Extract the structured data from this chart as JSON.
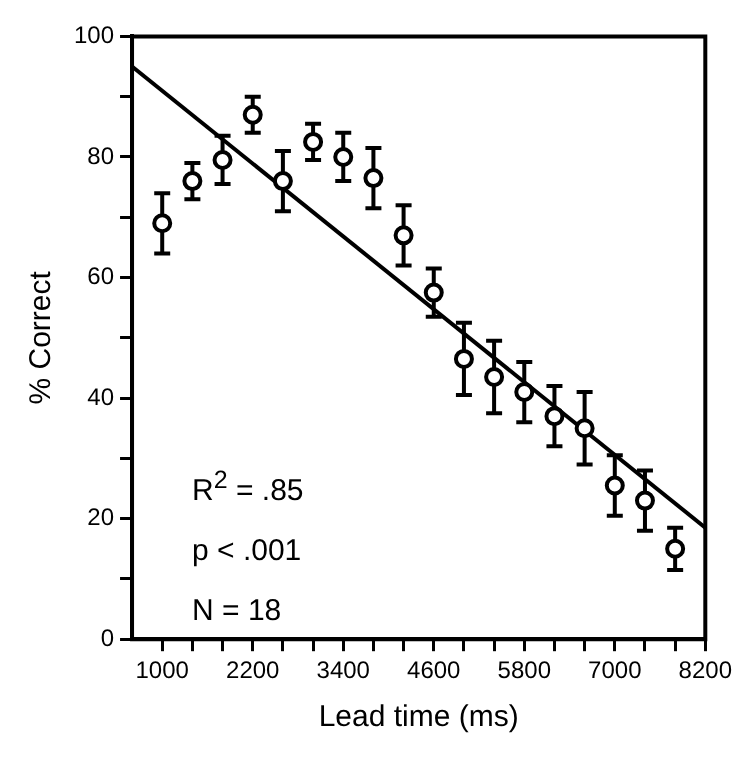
{
  "chart_data": {
    "type": "scatter",
    "xlabel": "Lead time (ms)",
    "ylabel": "% Correct",
    "annotations": [
      "R$^{2}$ = .85",
      "p < .001",
      "N = 18"
    ],
    "xlim": [
      600,
      8200
    ],
    "xticks": [
      {
        "value": 1000,
        "label": "1000"
      },
      {
        "value": 1400,
        "label": null
      },
      {
        "value": 1800,
        "label": null
      },
      {
        "value": 2200,
        "label": "2200"
      },
      {
        "value": 2600,
        "label": null
      },
      {
        "value": 3000,
        "label": null
      },
      {
        "value": 3400,
        "label": "3400"
      },
      {
        "value": 3800,
        "label": null
      },
      {
        "value": 4200,
        "label": null
      },
      {
        "value": 4600,
        "label": "4600"
      },
      {
        "value": 5000,
        "label": null
      },
      {
        "value": 5400,
        "label": null
      },
      {
        "value": 5800,
        "label": "5800"
      },
      {
        "value": 6200,
        "label": null
      },
      {
        "value": 6600,
        "label": null
      },
      {
        "value": 7000,
        "label": "7000"
      },
      {
        "value": 7400,
        "label": null
      },
      {
        "value": 7800,
        "label": null
      },
      {
        "value": 8200,
        "label": "8200"
      }
    ],
    "ylim": [
      0,
      100
    ],
    "yticks": [
      0,
      {
        "value": 10,
        "label": null
      },
      20,
      {
        "value": 30,
        "label": null
      },
      40,
      {
        "value": 50,
        "label": null
      },
      60,
      {
        "value": 70,
        "label": null
      },
      80,
      {
        "value": 90,
        "label": null
      },
      100
    ],
    "grid": false,
    "legend": false,
    "series": [
      {
        "color": "#000000",
        "marker": "circle",
        "x": [
          1000,
          1400,
          1800,
          2200,
          2600,
          3000,
          3400,
          3800,
          4200,
          4600,
          5000,
          5400,
          5800,
          6200,
          6600,
          7000,
          7400,
          7800
        ],
        "values": [
          69,
          76,
          79.5,
          87,
          76,
          82.5,
          80,
          76.5,
          67,
          57.5,
          46.5,
          43.5,
          41,
          37,
          35,
          25.5,
          23,
          15
        ],
        "errors": [
          5,
          3,
          4,
          3,
          5,
          3,
          4,
          5,
          5,
          4,
          6,
          6,
          5,
          5,
          6,
          5,
          5,
          3.5
        ]
      },
      {
        "type": "line",
        "color": "#000000",
        "marker": "none",
        "line_style": "solid",
        "x": [
          600,
          8200
        ],
        "values": [
          95,
          18.5
        ]
      }
    ]
  }
}
